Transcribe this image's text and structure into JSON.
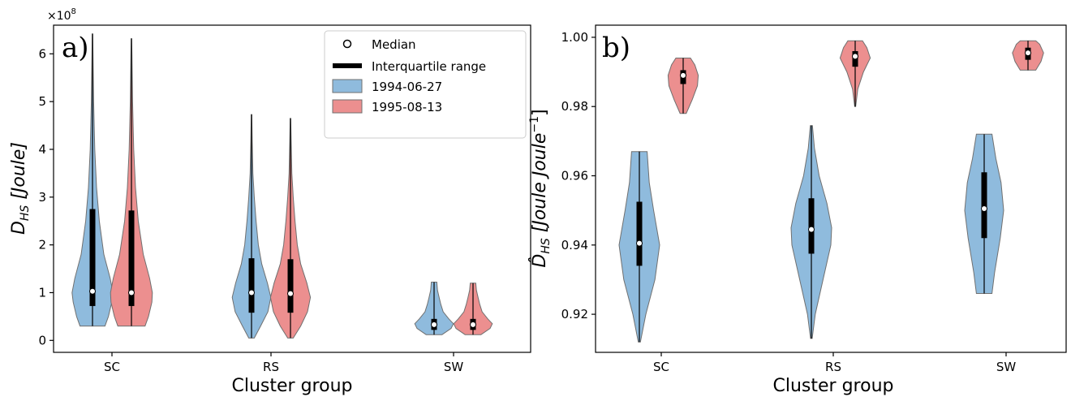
{
  "chart_data": [
    {
      "type": "violin",
      "panel_label": "a)",
      "xlabel": "Cluster group",
      "ylabel": "D_HS [Joule]",
      "ylabel_main": "D",
      "ylabel_sub": "HS",
      "ylabel_unit": " [Joule]",
      "y_multiplier": "×10",
      "y_multiplier_exp": "8",
      "ylim": [
        -0.25,
        6.6
      ],
      "yticks": [
        0,
        1,
        2,
        3,
        4,
        5,
        6
      ],
      "categories": [
        "SC",
        "RS",
        "SW"
      ],
      "legend": {
        "position": "top-right",
        "median_label": "Median",
        "iqr_label": "Interquartile range",
        "series_labels": [
          "1994-06-27",
          "1995-08-13"
        ]
      },
      "series": [
        {
          "name": "1994-06-27",
          "color": "#8fbbdd",
          "violins": [
            {
              "min": 0.3,
              "max": 6.42,
              "q1": 0.72,
              "median": 1.03,
              "q3": 2.75,
              "profile": [
                [
                  0.3,
                  0.55
                ],
                [
                  0.5,
                  0.7
                ],
                [
                  0.8,
                  0.85
                ],
                [
                  1.0,
                  0.9
                ],
                [
                  1.3,
                  0.78
                ],
                [
                  1.8,
                  0.5
                ],
                [
                  2.5,
                  0.3
                ],
                [
                  3.2,
                  0.18
                ],
                [
                  4.0,
                  0.1
                ],
                [
                  5.0,
                  0.05
                ],
                [
                  6.0,
                  0.02
                ],
                [
                  6.42,
                  0.01
                ]
              ]
            },
            {
              "min": 0.05,
              "max": 4.73,
              "q1": 0.58,
              "median": 1.0,
              "q3": 1.72,
              "profile": [
                [
                  0.05,
                  0.12
                ],
                [
                  0.3,
                  0.4
                ],
                [
                  0.6,
                  0.72
                ],
                [
                  0.9,
                  0.85
                ],
                [
                  1.2,
                  0.7
                ],
                [
                  1.6,
                  0.45
                ],
                [
                  2.0,
                  0.3
                ],
                [
                  2.5,
                  0.2
                ],
                [
                  3.0,
                  0.12
                ],
                [
                  3.5,
                  0.06
                ],
                [
                  4.2,
                  0.03
                ],
                [
                  4.73,
                  0.01
                ]
              ]
            },
            {
              "min": 0.12,
              "max": 1.22,
              "q1": 0.22,
              "median": 0.33,
              "q3": 0.45,
              "profile": [
                [
                  0.12,
                  0.35
                ],
                [
                  0.25,
                  0.75
                ],
                [
                  0.35,
                  0.85
                ],
                [
                  0.45,
                  0.65
                ],
                [
                  0.6,
                  0.4
                ],
                [
                  0.75,
                  0.3
                ],
                [
                  0.9,
                  0.22
                ],
                [
                  1.05,
                  0.15
                ],
                [
                  1.22,
                  0.12
                ]
              ]
            }
          ]
        },
        {
          "name": "1995-08-13",
          "color": "#ec8f8f",
          "violins": [
            {
              "min": 0.3,
              "max": 6.32,
              "q1": 0.72,
              "median": 1.0,
              "q3": 2.72,
              "profile": [
                [
                  0.3,
                  0.6
                ],
                [
                  0.5,
                  0.75
                ],
                [
                  0.8,
                  0.9
                ],
                [
                  1.0,
                  0.92
                ],
                [
                  1.3,
                  0.8
                ],
                [
                  1.8,
                  0.52
                ],
                [
                  2.5,
                  0.3
                ],
                [
                  3.2,
                  0.18
                ],
                [
                  4.0,
                  0.1
                ],
                [
                  5.0,
                  0.05
                ],
                [
                  6.0,
                  0.02
                ],
                [
                  6.32,
                  0.01
                ]
              ]
            },
            {
              "min": 0.05,
              "max": 4.65,
              "q1": 0.58,
              "median": 0.98,
              "q3": 1.7,
              "profile": [
                [
                  0.05,
                  0.12
                ],
                [
                  0.3,
                  0.45
                ],
                [
                  0.6,
                  0.75
                ],
                [
                  0.9,
                  0.88
                ],
                [
                  1.2,
                  0.72
                ],
                [
                  1.6,
                  0.45
                ],
                [
                  2.0,
                  0.3
                ],
                [
                  2.5,
                  0.2
                ],
                [
                  3.0,
                  0.12
                ],
                [
                  3.5,
                  0.06
                ],
                [
                  4.2,
                  0.03
                ],
                [
                  4.65,
                  0.01
                ]
              ]
            },
            {
              "min": 0.12,
              "max": 1.2,
              "q1": 0.22,
              "median": 0.33,
              "q3": 0.45,
              "profile": [
                [
                  0.12,
                  0.35
                ],
                [
                  0.25,
                  0.75
                ],
                [
                  0.35,
                  0.85
                ],
                [
                  0.45,
                  0.65
                ],
                [
                  0.6,
                  0.4
                ],
                [
                  0.75,
                  0.3
                ],
                [
                  0.9,
                  0.22
                ],
                [
                  1.05,
                  0.15
                ],
                [
                  1.2,
                  0.12
                ]
              ]
            }
          ]
        }
      ]
    },
    {
      "type": "violin",
      "panel_label": "b)",
      "xlabel": "Cluster group",
      "ylabel": "D̂_HS [Joule Joule^-1]",
      "ylabel_main": "D̂",
      "ylabel_sub": "HS",
      "ylabel_unit": " [Joule Joule",
      "ylabel_sup": "−1",
      "ylabel_close": "]",
      "ylim": [
        0.909,
        1.0035
      ],
      "yticks": [
        "0.92",
        "0.94",
        "0.96",
        "0.98",
        "1.00"
      ],
      "categories": [
        "SC",
        "RS",
        "SW"
      ],
      "series": [
        {
          "name": "1994-06-27",
          "color": "#8fbbdd",
          "violins": [
            {
              "min": 0.912,
              "max": 0.967,
              "q1": 0.934,
              "median": 0.9405,
              "q3": 0.9525,
              "profile": [
                [
                  0.912,
                  0.04
                ],
                [
                  0.92,
                  0.25
                ],
                [
                  0.93,
                  0.6
                ],
                [
                  0.94,
                  0.78
                ],
                [
                  0.95,
                  0.55
                ],
                [
                  0.958,
                  0.38
                ],
                [
                  0.967,
                  0.3
                ]
              ]
            },
            {
              "min": 0.913,
              "max": 0.9745,
              "q1": 0.9375,
              "median": 0.9445,
              "q3": 0.9535,
              "profile": [
                [
                  0.913,
                  0.03
                ],
                [
                  0.92,
                  0.15
                ],
                [
                  0.93,
                  0.45
                ],
                [
                  0.94,
                  0.75
                ],
                [
                  0.945,
                  0.78
                ],
                [
                  0.952,
                  0.6
                ],
                [
                  0.96,
                  0.3
                ],
                [
                  0.968,
                  0.12
                ],
                [
                  0.9745,
                  0.04
                ]
              ]
            },
            {
              "min": 0.926,
              "max": 0.972,
              "q1": 0.942,
              "median": 0.9505,
              "q3": 0.961,
              "profile": [
                [
                  0.926,
                  0.3
                ],
                [
                  0.932,
                  0.4
                ],
                [
                  0.942,
                  0.62
                ],
                [
                  0.95,
                  0.75
                ],
                [
                  0.958,
                  0.65
                ],
                [
                  0.965,
                  0.45
                ],
                [
                  0.972,
                  0.3
                ]
              ]
            }
          ]
        },
        {
          "name": "1995-08-13",
          "color": "#ec8f8f",
          "violins": [
            {
              "min": 0.978,
              "max": 0.994,
              "q1": 0.9865,
              "median": 0.989,
              "q3": 0.9905,
              "profile": [
                [
                  0.978,
                  0.12
                ],
                [
                  0.982,
                  0.35
                ],
                [
                  0.986,
                  0.55
                ],
                [
                  0.989,
                  0.58
                ],
                [
                  0.992,
                  0.45
                ],
                [
                  0.994,
                  0.28
                ]
              ]
            },
            {
              "min": 0.98,
              "max": 0.999,
              "q1": 0.9915,
              "median": 0.9945,
              "q3": 0.996,
              "profile": [
                [
                  0.98,
                  0.02
                ],
                [
                  0.985,
                  0.1
                ],
                [
                  0.99,
                  0.32
                ],
                [
                  0.994,
                  0.58
                ],
                [
                  0.997,
                  0.45
                ],
                [
                  0.999,
                  0.28
                ]
              ]
            },
            {
              "min": 0.9905,
              "max": 0.999,
              "q1": 0.9935,
              "median": 0.9955,
              "q3": 0.997,
              "profile": [
                [
                  0.9905,
                  0.3
                ],
                [
                  0.993,
                  0.5
                ],
                [
                  0.9955,
                  0.6
                ],
                [
                  0.998,
                  0.45
                ],
                [
                  0.999,
                  0.3
                ]
              ]
            }
          ]
        }
      ]
    }
  ]
}
